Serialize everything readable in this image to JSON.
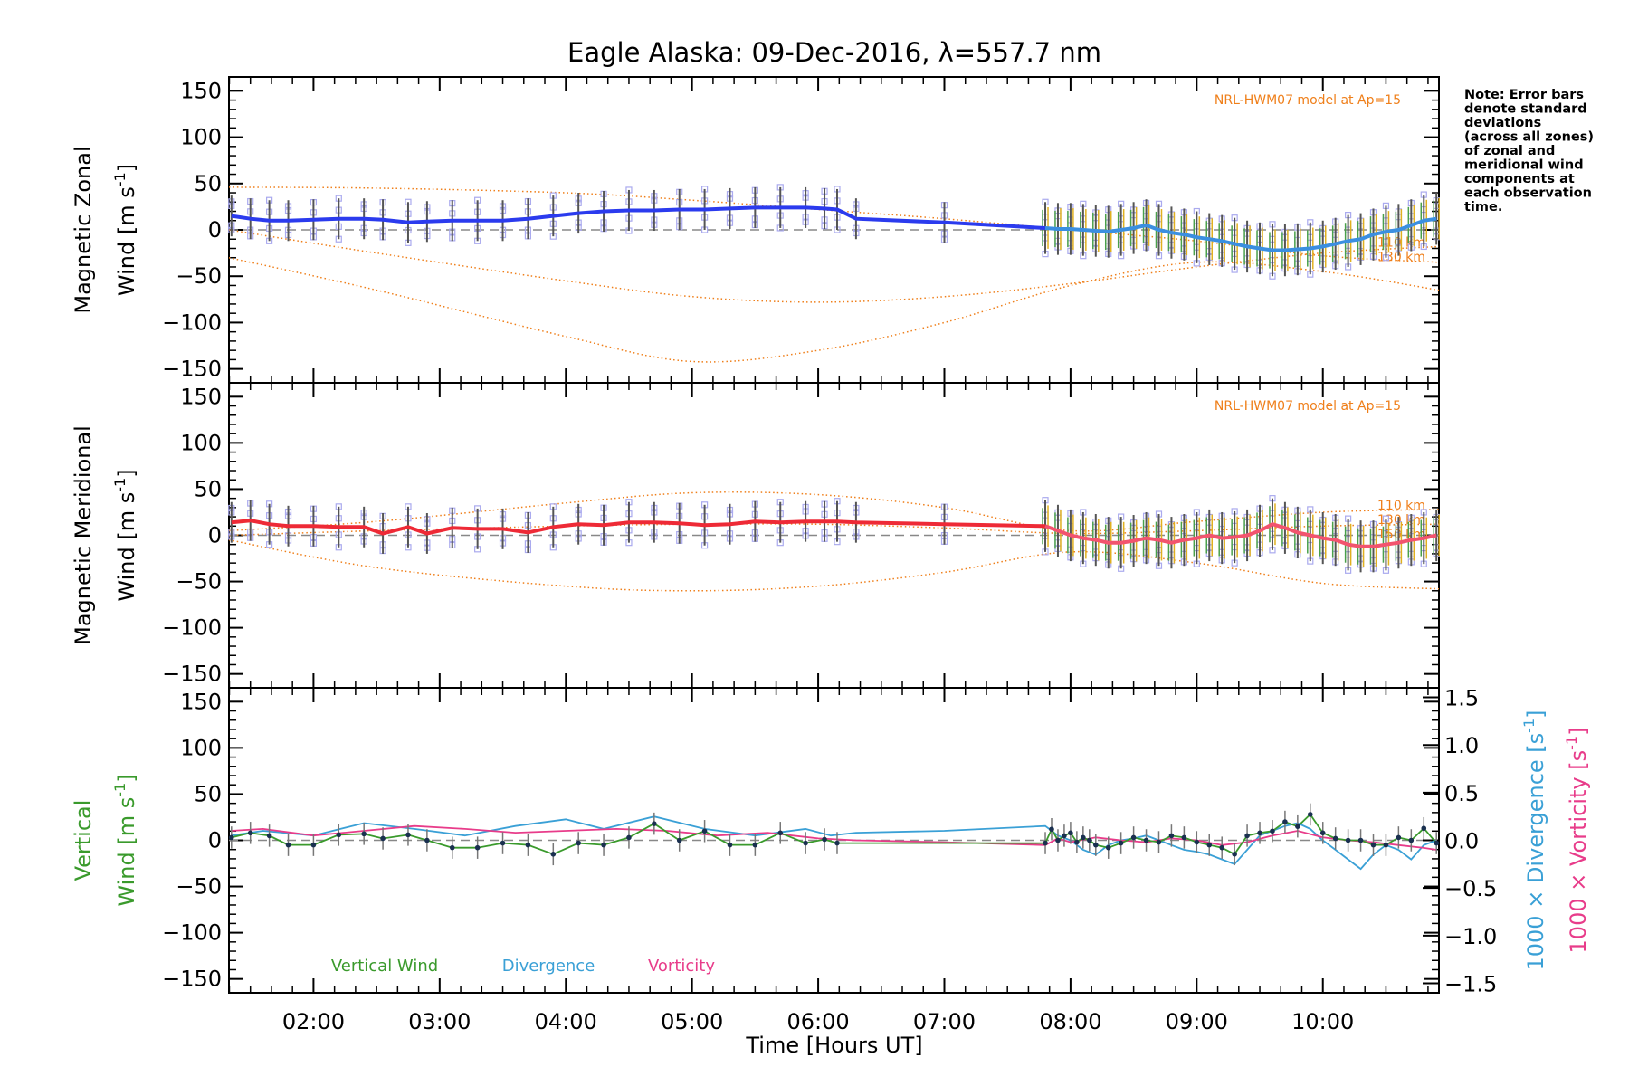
{
  "title": "Eagle Alaska: 09-Dec-2016, λ=557.7 nm",
  "xlabel": "Time [Hours UT]",
  "x_ticks": [
    "02:00",
    "03:00",
    "04:00",
    "05:00",
    "06:00",
    "07:00",
    "08:00",
    "09:00",
    "10:00"
  ],
  "y_ticks": [
    "150",
    "100",
    "50",
    "0",
    "−50",
    "−100",
    "−150"
  ],
  "right_ticks": [
    "1.5",
    "1.0",
    "0.5",
    "0.0",
    "−0.5",
    "−1.0",
    "−1.5"
  ],
  "note": [
    "Note: Error bars",
    "denote standard",
    "deviations",
    "(across all zones)",
    "of zonal and",
    "meridional wind",
    "components at",
    "each observation",
    "time."
  ],
  "colors": {
    "zonal": "#2b3bee",
    "zonal_late": "#3b8fe0",
    "meridional": "#ee2a36",
    "meridional_late": "#f2546e",
    "vertical": "#3a9a2c",
    "divergence": "#3aa0d6",
    "vorticity": "#e83c8a",
    "model": "#ef7f1a",
    "zone": "#aaaaee"
  },
  "chart_data": [
    {
      "type": "line",
      "panel": "zonal",
      "ylabel_line1": "Magnetic Zonal",
      "ylabel_line2": "Wind [m s",
      "ylabel_sup": "-1",
      "ylabel_close": "]",
      "xlim": [
        1.33,
        10.92
      ],
      "ylim": [
        -165,
        165
      ],
      "model_label": "NRL-HWM07 model at Ap=15",
      "model_alt_labels": [
        "110 km",
        "130 km"
      ],
      "series": [
        {
          "name": "Zonal wind",
          "x": [
            1.35,
            1.5,
            1.65,
            1.8,
            2.0,
            2.2,
            2.4,
            2.55,
            2.75,
            2.9,
            3.1,
            3.3,
            3.5,
            3.7,
            3.9,
            4.1,
            4.3,
            4.5,
            4.7,
            4.9,
            5.1,
            5.3,
            5.5,
            5.7,
            5.9,
            6.05,
            6.15,
            6.3,
            7.0,
            7.8,
            7.9,
            8.0,
            8.1,
            8.2,
            8.3,
            8.4,
            8.5,
            8.6,
            8.7,
            8.8,
            8.9,
            9.0,
            9.1,
            9.2,
            9.3,
            9.4,
            9.5,
            9.6,
            9.7,
            9.8,
            9.9,
            10.0,
            10.1,
            10.2,
            10.3,
            10.4,
            10.5,
            10.6,
            10.7,
            10.8,
            10.9
          ],
          "y": [
            15,
            12,
            10,
            10,
            11,
            12,
            12,
            11,
            8,
            9,
            10,
            10,
            10,
            12,
            15,
            18,
            20,
            21,
            21,
            22,
            22,
            23,
            24,
            24,
            24,
            23,
            22,
            12,
            8,
            2,
            1,
            1,
            0,
            -1,
            -2,
            0,
            2,
            5,
            0,
            -3,
            -5,
            -8,
            -10,
            -12,
            -15,
            -18,
            -20,
            -22,
            -22,
            -21,
            -20,
            -18,
            -15,
            -12,
            -10,
            -5,
            -2,
            0,
            5,
            10,
            12
          ]
        }
      ],
      "model_curves": [
        {
          "name": "model-upper",
          "x": [
            1.33,
            2.5,
            4.0,
            5.0,
            6.0,
            7.0,
            8.0,
            9.0,
            10.0,
            10.92
          ],
          "y": [
            46,
            45,
            40,
            32,
            22,
            12,
            0,
            -12,
            -28,
            -35
          ]
        },
        {
          "name": "model-mid",
          "x": [
            1.33,
            2.5,
            4.0,
            5.0,
            6.0,
            7.0,
            8.0,
            9.0,
            10.0,
            10.92
          ],
          "y": [
            0,
            -25,
            -55,
            -72,
            -78,
            -72,
            -58,
            -40,
            -25,
            -18
          ]
        },
        {
          "name": "model-lower",
          "x": [
            1.33,
            2.5,
            4.0,
            5.0,
            6.0,
            7.0,
            8.0,
            9.0,
            10.0,
            10.92
          ],
          "y": [
            -30,
            -65,
            -115,
            -142,
            -130,
            -100,
            -60,
            -35,
            -45,
            -65
          ]
        }
      ]
    },
    {
      "type": "line",
      "panel": "meridional",
      "ylabel_line1": "Magnetic Meridional",
      "ylabel_line2": "Wind [m s",
      "ylabel_sup": "-1",
      "ylabel_close": "]",
      "xlim": [
        1.33,
        10.92
      ],
      "ylim": [
        -165,
        165
      ],
      "model_label": "NRL-HWM07 model at Ap=15",
      "model_alt_labels": [
        "110 km",
        "130 km",
        "150 km"
      ],
      "series": [
        {
          "name": "Meridional wind",
          "x": [
            1.35,
            1.5,
            1.65,
            1.8,
            2.0,
            2.2,
            2.4,
            2.55,
            2.75,
            2.9,
            3.1,
            3.3,
            3.5,
            3.7,
            3.9,
            4.1,
            4.3,
            4.5,
            4.7,
            4.9,
            5.1,
            5.3,
            5.5,
            5.7,
            5.9,
            6.05,
            6.15,
            6.3,
            7.0,
            7.8,
            7.9,
            8.0,
            8.1,
            8.2,
            8.3,
            8.4,
            8.5,
            8.6,
            8.7,
            8.8,
            8.9,
            9.0,
            9.1,
            9.2,
            9.3,
            9.4,
            9.5,
            9.6,
            9.7,
            9.8,
            9.9,
            10.0,
            10.1,
            10.2,
            10.3,
            10.4,
            10.5,
            10.6,
            10.7,
            10.8,
            10.9
          ],
          "y": [
            14,
            16,
            12,
            10,
            10,
            9,
            9,
            2,
            9,
            2,
            8,
            7,
            7,
            3,
            9,
            12,
            11,
            14,
            14,
            13,
            11,
            12,
            15,
            14,
            15,
            15,
            15,
            14,
            12,
            10,
            5,
            0,
            -3,
            -5,
            -8,
            -8,
            -6,
            -3,
            -5,
            -8,
            -5,
            -3,
            0,
            -3,
            -2,
            0,
            5,
            12,
            8,
            3,
            0,
            -3,
            -5,
            -10,
            -12,
            -12,
            -10,
            -8,
            -5,
            -3,
            0
          ]
        }
      ],
      "model_curves": [
        {
          "name": "model-upper",
          "x": [
            1.33,
            2.5,
            4.0,
            5.0,
            6.0,
            7.0,
            8.0,
            9.0,
            10.0,
            10.92
          ],
          "y": [
            5,
            15,
            35,
            46,
            44,
            30,
            5,
            15,
            25,
            28
          ]
        },
        {
          "name": "model-mid",
          "x": [
            1.33,
            2.5,
            4.0,
            5.0,
            6.0,
            7.0,
            8.0,
            9.0,
            10.0,
            10.92
          ],
          "y": [
            0,
            5,
            10,
            12,
            12,
            8,
            2,
            5,
            10,
            12
          ]
        },
        {
          "name": "model-lower",
          "x": [
            1.33,
            2.5,
            4.0,
            5.0,
            6.0,
            7.0,
            8.0,
            9.0,
            10.0,
            10.92
          ],
          "y": [
            -5,
            -35,
            -55,
            -60,
            -55,
            -40,
            -18,
            -30,
            -52,
            -58
          ]
        }
      ]
    },
    {
      "type": "line",
      "panel": "vertical",
      "ylabel_line1": "Vertical",
      "ylabel_line2": "Wind [m s",
      "ylabel_sup": "-1",
      "ylabel_close": "]",
      "right_label_div": "1000 × Divergence [s",
      "right_label_vort": "1000 × Vorticity [s",
      "right_sup": "-1",
      "right_close": "]",
      "xlim": [
        1.33,
        10.92
      ],
      "ylim": [
        -165,
        165
      ],
      "y2lim": [
        -1.6,
        1.6
      ],
      "legend": [
        "Vertical Wind",
        "Divergence",
        "Vorticity"
      ],
      "series": [
        {
          "name": "Vertical Wind",
          "x": [
            1.35,
            1.5,
            1.65,
            1.8,
            2.0,
            2.2,
            2.4,
            2.55,
            2.75,
            2.9,
            3.1,
            3.3,
            3.5,
            3.7,
            3.9,
            4.1,
            4.3,
            4.5,
            4.7,
            4.9,
            5.1,
            5.3,
            5.5,
            5.7,
            5.9,
            6.05,
            6.15,
            7.8,
            7.85,
            7.9,
            7.95,
            8.0,
            8.05,
            8.1,
            8.15,
            8.2,
            8.3,
            8.4,
            8.5,
            8.6,
            8.7,
            8.8,
            8.9,
            9.0,
            9.1,
            9.2,
            9.3,
            9.4,
            9.5,
            9.6,
            9.7,
            9.8,
            9.9,
            10.0,
            10.1,
            10.2,
            10.3,
            10.4,
            10.5,
            10.6,
            10.7,
            10.8,
            10.9
          ],
          "y": [
            3,
            8,
            5,
            -5,
            -5,
            6,
            7,
            2,
            6,
            0,
            -8,
            -8,
            -3,
            -5,
            -15,
            -3,
            -5,
            3,
            18,
            0,
            10,
            -5,
            -5,
            8,
            -3,
            1,
            -3,
            -3,
            12,
            0,
            5,
            8,
            -2,
            3,
            0,
            -5,
            -8,
            -3,
            3,
            0,
            -2,
            5,
            3,
            -2,
            -5,
            -8,
            -15,
            5,
            8,
            10,
            20,
            15,
            28,
            8,
            2,
            0,
            0,
            -5,
            -5,
            3,
            0,
            13,
            -3
          ]
        },
        {
          "name": "Divergence",
          "axis": "right",
          "x": [
            1.35,
            1.6,
            2.0,
            2.4,
            2.8,
            3.2,
            3.6,
            4.0,
            4.3,
            4.7,
            5.1,
            5.5,
            5.9,
            6.1,
            6.3,
            7.0,
            7.8,
            7.9,
            8.0,
            8.1,
            8.2,
            8.3,
            8.4,
            8.5,
            8.6,
            8.7,
            8.8,
            8.9,
            9.0,
            9.1,
            9.2,
            9.3,
            9.4,
            9.5,
            9.6,
            9.7,
            9.8,
            9.9,
            10.0,
            10.1,
            10.2,
            10.3,
            10.4,
            10.5,
            10.6,
            10.7,
            10.8,
            10.9
          ],
          "y": [
            0.05,
            0.1,
            0.05,
            0.18,
            0.12,
            0.05,
            0.15,
            0.22,
            0.12,
            0.25,
            0.12,
            0.05,
            0.12,
            0.05,
            0.08,
            0.1,
            0.15,
            0.05,
            0.0,
            -0.1,
            -0.15,
            -0.05,
            0.0,
            0.02,
            0.05,
            0.0,
            -0.05,
            -0.1,
            -0.12,
            -0.15,
            -0.2,
            -0.25,
            -0.1,
            0.05,
            0.1,
            0.15,
            0.18,
            0.12,
            0.0,
            -0.1,
            -0.2,
            -0.3,
            -0.15,
            -0.05,
            -0.1,
            -0.2,
            -0.05,
            0.0
          ]
        },
        {
          "name": "Vorticity",
          "axis": "right",
          "x": [
            1.35,
            1.6,
            2.0,
            2.4,
            2.8,
            3.2,
            3.6,
            4.0,
            4.4,
            4.8,
            5.2,
            5.6,
            6.0,
            6.3,
            7.0,
            7.8,
            7.9,
            8.0,
            8.2,
            8.4,
            8.6,
            8.8,
            9.0,
            9.2,
            9.4,
            9.6,
            9.8,
            10.0,
            10.2,
            10.4,
            10.6,
            10.8,
            10.9
          ],
          "y": [
            0.1,
            0.12,
            0.05,
            0.1,
            0.15,
            0.12,
            0.08,
            0.1,
            0.12,
            0.1,
            0.05,
            0.08,
            0.02,
            0.0,
            -0.02,
            -0.05,
            0.02,
            -0.02,
            0.03,
            0.0,
            -0.02,
            0.02,
            0.0,
            -0.05,
            -0.02,
            0.05,
            0.1,
            0.03,
            0.0,
            -0.02,
            -0.05,
            -0.08,
            -0.1
          ]
        }
      ]
    }
  ]
}
